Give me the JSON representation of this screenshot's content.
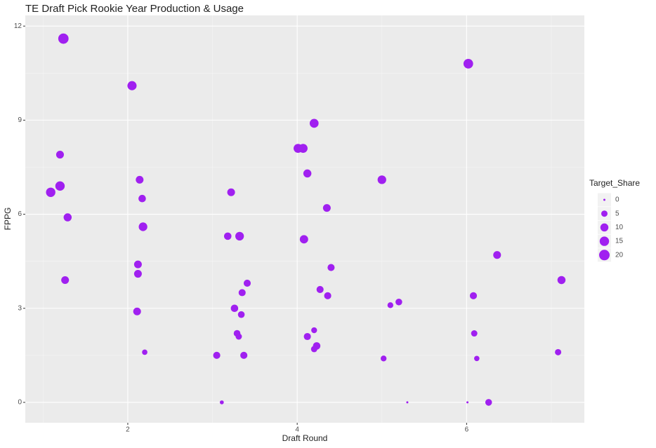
{
  "chart_data": {
    "type": "scatter",
    "title": "TE Draft Pick Rookie Year Production & Usage",
    "x_label": "Draft Round",
    "y_label": "FPPG",
    "size_label": "Target_Share",
    "color": "#a020f0",
    "xlim": [
      0.79,
      7.39
    ],
    "ylim": [
      -0.65,
      12.34
    ],
    "xticks": [
      2,
      4,
      6
    ],
    "yticks": [
      0,
      3,
      6,
      9,
      12
    ],
    "grid": true,
    "size_legend": [
      0,
      5,
      10,
      15,
      20
    ],
    "x": [
      1.24,
      2.05,
      6.02,
      4.2,
      4.01,
      4.07,
      1.2,
      4.12,
      5.0,
      2.14,
      1.2,
      1.09,
      3.22,
      2.17,
      4.35,
      1.29,
      2.18,
      3.18,
      3.32,
      4.08,
      2.12,
      6.36,
      4.4,
      2.12,
      1.26,
      7.12,
      3.41,
      3.35,
      4.27,
      4.36,
      6.08,
      5.2,
      5.1,
      3.26,
      2.11,
      3.34,
      4.2,
      3.29,
      6.09,
      3.31,
      4.12,
      4.23,
      4.2,
      2.2,
      7.08,
      3.05,
      3.37,
      5.02,
      6.12,
      3.11,
      5.3,
      6.01,
      6.26
    ],
    "values": [
      11.6,
      10.1,
      10.8,
      8.9,
      8.1,
      8.1,
      7.9,
      7.3,
      7.1,
      7.1,
      6.9,
      6.7,
      6.7,
      6.5,
      6.2,
      5.9,
      5.6,
      5.3,
      5.3,
      5.2,
      4.4,
      4.7,
      4.3,
      4.1,
      3.9,
      3.9,
      3.8,
      3.5,
      3.6,
      3.4,
      3.4,
      3.2,
      3.1,
      3.0,
      2.9,
      2.8,
      2.3,
      2.2,
      2.2,
      2.1,
      2.1,
      1.8,
      1.7,
      1.6,
      1.6,
      1.5,
      1.5,
      1.4,
      1.4,
      0,
      0,
      0,
      0
    ],
    "sizes": [
      19,
      14,
      16,
      13,
      13,
      13,
      9,
      10,
      12,
      9,
      15,
      15,
      9,
      8,
      9,
      10,
      12,
      8,
      12,
      11,
      9,
      9,
      7,
      9,
      9,
      10,
      7,
      7,
      7,
      7,
      7,
      6,
      4,
      8,
      9,
      6,
      4,
      6,
      5,
      5,
      7,
      8,
      5,
      3,
      5,
      7,
      7,
      4,
      3,
      1,
      0,
      0,
      6
    ]
  }
}
